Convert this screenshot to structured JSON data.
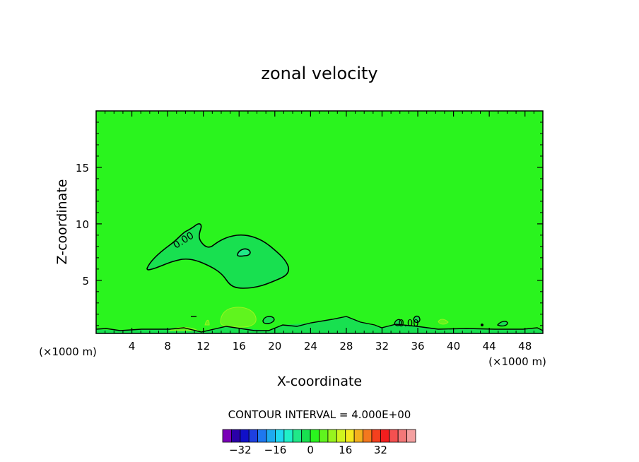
{
  "chart_data": {
    "type": "contour",
    "title": "zonal velocity",
    "xlabel": "X-coordinate",
    "ylabel": "Z-coordinate",
    "x_unit": "(×1000 m)",
    "x_unit_right": "(×1000 m)",
    "xlim": [
      0,
      50
    ],
    "ylim": [
      0.3,
      20
    ],
    "x_ticks": [
      4,
      8,
      12,
      16,
      20,
      24,
      28,
      32,
      36,
      40,
      44,
      48
    ],
    "y_ticks": [
      5,
      10,
      15
    ],
    "contour_labels": [
      "0.00",
      "0.00"
    ],
    "contour_interval_text": "CONTOUR INTERVAL = 4.000E+00",
    "colorbar": {
      "colors": [
        "#7a00b8",
        "#2a00a8",
        "#1010c8",
        "#1e40e0",
        "#1e78f0",
        "#1eaaf0",
        "#20d8f0",
        "#20f0c8",
        "#20e888",
        "#18e050",
        "#2af41e",
        "#60f41e",
        "#98f41e",
        "#d0f41e",
        "#f4e81e",
        "#f4b01e",
        "#f4781e",
        "#f4401e",
        "#f41e1e",
        "#f45050",
        "#f47878",
        "#f4a0a0"
      ],
      "tick_labels": [
        "−32",
        "−16",
        "0",
        "16",
        "32"
      ],
      "tick_values": [
        -32,
        -16,
        0,
        16,
        32
      ]
    },
    "regions": [
      {
        "name": "background",
        "value": 2,
        "color": "#2af41e"
      },
      {
        "name": "upper-negative-lobe",
        "value": -2,
        "color": "#18e050",
        "center": [
          17,
          6.8
        ]
      },
      {
        "name": "inner-core",
        "value": -6,
        "color": "#20e888",
        "center": [
          16.7,
          7.2
        ]
      },
      {
        "name": "low-level-positive",
        "value": 6,
        "color": "#60f41e",
        "center": [
          16,
          1.5
        ]
      }
    ]
  }
}
